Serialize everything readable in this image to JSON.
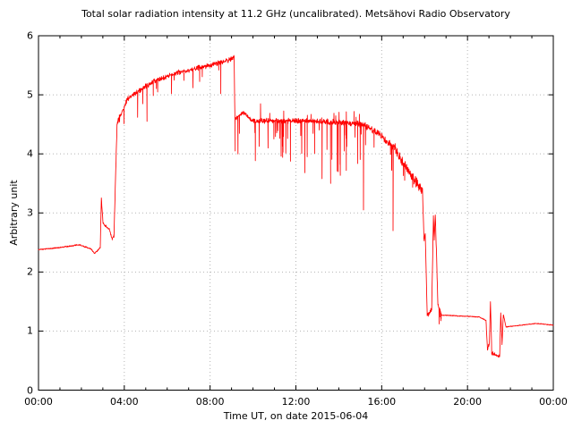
{
  "chart_data": {
    "type": "line",
    "title": "Total solar radiation intensity at 11.2 GHz (uncalibrated). Metsähovi Radio Observatory",
    "xlabel": "Time UT, on date 2015-06-04",
    "ylabel": "Arbitrary unit",
    "series_name": "total solar radiation intensity (uncalibrated)",
    "legend": "none",
    "grid": "dotted at major ticks",
    "xlim": [
      0,
      24
    ],
    "ylim": [
      0,
      6
    ],
    "x_tick_hours": [
      0,
      4,
      8,
      12,
      16,
      20,
      24
    ],
    "x_tick_labels": [
      "00:00",
      "04:00",
      "08:00",
      "12:00",
      "16:00",
      "20:00",
      "00:00"
    ],
    "x_minor_tick_every_hours": 1,
    "y_tick_values": [
      0,
      1,
      2,
      3,
      4,
      5,
      6
    ],
    "y_tick_labels": [
      "0",
      "1",
      "2",
      "3",
      "4",
      "5",
      "6"
    ],
    "line_color": "#ff0000",
    "grid_color": "#b4b4b4",
    "axis_color": "#000000",
    "segments": [
      {
        "t": [
          0.0,
          0.9
        ],
        "v": [
          2.38,
          2.41
        ],
        "n": 0.012
      },
      {
        "t": [
          0.9,
          1.9
        ],
        "v": [
          2.41,
          2.46
        ],
        "n": 0.012
      },
      {
        "t": [
          1.9,
          2.45
        ],
        "v": [
          2.46,
          2.39
        ],
        "n": 0.012
      },
      {
        "t": [
          2.45,
          2.62
        ],
        "v": [
          2.39,
          2.31
        ],
        "n": 0.012
      },
      {
        "t": [
          2.62,
          2.88
        ],
        "v": [
          2.31,
          2.42
        ],
        "n": 0.015
      },
      {
        "t": [
          2.88,
          2.93
        ],
        "v": [
          2.42,
          3.25
        ],
        "n": 0.02
      },
      {
        "t": [
          2.93,
          3.01
        ],
        "v": [
          3.25,
          2.82
        ],
        "n": 0.02
      },
      {
        "t": [
          3.01,
          3.3
        ],
        "v": [
          2.82,
          2.72
        ],
        "n": 0.025
      },
      {
        "t": [
          3.3,
          3.44
        ],
        "v": [
          2.72,
          2.56
        ],
        "n": 0.02
      },
      {
        "t": [
          3.44,
          3.52
        ],
        "v": [
          2.56,
          2.63
        ],
        "n": 0.02
      },
      {
        "t": [
          3.52,
          3.66
        ],
        "v": [
          2.63,
          4.5
        ],
        "n": 0.07
      },
      {
        "t": [
          3.66,
          3.78
        ],
        "v": [
          4.5,
          4.6
        ],
        "n": 0.1
      },
      {
        "t": [
          3.78,
          4.15
        ],
        "v": [
          4.6,
          4.93
        ],
        "n": 0.055,
        "sd": [
          2,
          0.1,
          0.3
        ]
      },
      {
        "t": [
          4.15,
          5.3
        ],
        "v": [
          4.93,
          5.22
        ],
        "n": 0.05,
        "sd": [
          1.5,
          0.1,
          0.35
        ]
      },
      {
        "t": [
          5.3,
          6.5
        ],
        "v": [
          5.22,
          5.38
        ],
        "n": 0.05,
        "sd": [
          1.5,
          0.1,
          0.3
        ]
      },
      {
        "t": [
          6.5,
          8.0
        ],
        "v": [
          5.38,
          5.5
        ],
        "n": 0.05,
        "sd": [
          1.5,
          0.1,
          0.3
        ]
      },
      {
        "t": [
          8.0,
          9.02
        ],
        "v": [
          5.5,
          5.6
        ],
        "n": 0.05,
        "sd": [
          2,
          0.12,
          0.4
        ]
      },
      {
        "t": [
          9.02,
          9.12
        ],
        "v": [
          5.6,
          5.66
        ],
        "n": 0.04
      },
      {
        "t": [
          9.12,
          9.16
        ],
        "v": [
          5.66,
          4.5
        ],
        "n": 0.02
      },
      {
        "t": [
          9.16,
          9.55
        ],
        "v": [
          4.6,
          4.7
        ],
        "n": 0.045,
        "sd": [
          3,
          0.1,
          0.4
        ]
      },
      {
        "t": [
          9.55,
          9.95
        ],
        "v": [
          4.7,
          4.56
        ],
        "n": 0.045,
        "sd": [
          3,
          0.1,
          0.4
        ]
      },
      {
        "t": [
          9.95,
          13.0
        ],
        "v": [
          4.56,
          4.56
        ],
        "n": 0.05,
        "sd": [
          5,
          0.12,
          0.7
        ],
        "su": [
          2,
          0.08,
          0.2
        ]
      },
      {
        "t": [
          13.0,
          15.1
        ],
        "v": [
          4.56,
          4.5
        ],
        "n": 0.06,
        "sd": [
          6,
          0.15,
          0.9
        ],
        "su": [
          2.5,
          0.1,
          0.25
        ]
      },
      {
        "t": [
          15.1,
          15.7
        ],
        "v": [
          4.5,
          4.38
        ],
        "n": 0.06,
        "sd": [
          4,
          0.15,
          0.5
        ]
      },
      {
        "t": [
          15.7,
          16.6
        ],
        "v": [
          4.38,
          4.1
        ],
        "n": 0.07,
        "sd": [
          4,
          0.15,
          0.5
        ]
      },
      {
        "t": [
          16.6,
          17.5
        ],
        "v": [
          4.1,
          3.55
        ],
        "n": 0.1,
        "sd": [
          3,
          0.15,
          0.45
        ]
      },
      {
        "t": [
          17.5,
          17.9
        ],
        "v": [
          3.55,
          3.4
        ],
        "n": 0.12
      },
      {
        "t": [
          17.9,
          17.97
        ],
        "v": [
          3.4,
          2.55
        ],
        "n": 0.03
      },
      {
        "t": [
          17.97,
          18.03
        ],
        "v": [
          2.55,
          2.62
        ],
        "n": 0.05
      },
      {
        "t": [
          18.03,
          18.12
        ],
        "v": [
          2.62,
          1.32
        ],
        "n": 0.02
      },
      {
        "t": [
          18.12,
          18.33
        ],
        "v": [
          1.28,
          1.36
        ],
        "n": 0.05
      },
      {
        "t": [
          18.33,
          18.41
        ],
        "v": [
          1.36,
          2.94
        ],
        "n": 0.03
      },
      {
        "t": [
          18.41,
          18.45
        ],
        "v": [
          2.94,
          2.56
        ],
        "n": 0.03
      },
      {
        "t": [
          18.45,
          18.5
        ],
        "v": [
          2.56,
          2.97
        ],
        "n": 0.03
      },
      {
        "t": [
          18.5,
          18.62
        ],
        "v": [
          2.97,
          1.45
        ],
        "n": 0.05
      },
      {
        "t": [
          18.62,
          18.78
        ],
        "v": [
          1.45,
          1.28
        ],
        "n": 0.03,
        "sd": [
          8,
          0.05,
          0.15
        ]
      },
      {
        "t": [
          18.78,
          20.55
        ],
        "v": [
          1.27,
          1.24
        ],
        "n": 0.008
      },
      {
        "t": [
          20.55,
          20.86
        ],
        "v": [
          1.24,
          1.18
        ],
        "n": 0.01
      },
      {
        "t": [
          20.86,
          20.93
        ],
        "v": [
          1.18,
          0.7
        ],
        "n": 0.02
      },
      {
        "t": [
          20.93,
          21.02
        ],
        "v": [
          0.7,
          0.79
        ],
        "n": 0.04
      },
      {
        "t": [
          21.02,
          21.07
        ],
        "v": [
          0.79,
          1.5
        ],
        "n": 0.02
      },
      {
        "t": [
          21.07,
          21.13
        ],
        "v": [
          1.5,
          0.63
        ],
        "n": 0.02
      },
      {
        "t": [
          21.13,
          21.5
        ],
        "v": [
          0.63,
          0.56
        ],
        "n": 0.05
      },
      {
        "t": [
          21.5,
          21.55
        ],
        "v": [
          0.56,
          1.3
        ],
        "n": 0.02
      },
      {
        "t": [
          21.55,
          21.61
        ],
        "v": [
          1.3,
          0.78
        ],
        "n": 0.02
      },
      {
        "t": [
          21.61,
          21.67
        ],
        "v": [
          0.78,
          1.28
        ],
        "n": 0.02
      },
      {
        "t": [
          21.67,
          21.8
        ],
        "v": [
          1.28,
          1.07
        ],
        "n": 0.015
      },
      {
        "t": [
          21.8,
          23.2
        ],
        "v": [
          1.07,
          1.13
        ],
        "n": 0.008
      },
      {
        "t": [
          23.2,
          24.0
        ],
        "v": [
          1.13,
          1.1
        ],
        "n": 0.008
      }
    ],
    "spike_events": [
      {
        "t": 4.62,
        "v": 4.62
      },
      {
        "t": 5.06,
        "v": 4.55
      },
      {
        "t": 6.2,
        "v": 5.02
      },
      {
        "t": 7.2,
        "v": 5.12
      },
      {
        "t": 8.5,
        "v": 5.02
      },
      {
        "t": 9.17,
        "v": 4.05
      },
      {
        "t": 9.3,
        "v": 4.0
      },
      {
        "t": 10.35,
        "v": 4.85
      },
      {
        "t": 10.7,
        "v": 4.1
      },
      {
        "t": 11.4,
        "v": 4.03
      },
      {
        "t": 12.42,
        "v": 3.68
      },
      {
        "t": 13.22,
        "v": 3.58
      },
      {
        "t": 13.62,
        "v": 3.5
      },
      {
        "t": 14.35,
        "v": 3.72
      },
      {
        "t": 15.15,
        "v": 3.05
      },
      {
        "t": 16.53,
        "v": 2.7
      },
      {
        "t": 18.68,
        "v": 1.12
      }
    ]
  }
}
